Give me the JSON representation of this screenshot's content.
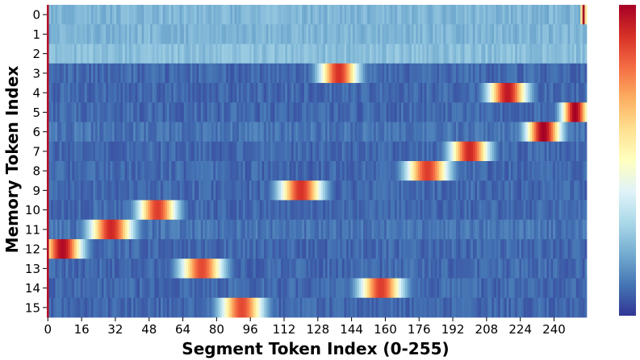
{
  "chart_data": {
    "type": "heatmap",
    "title": "",
    "xlabel": "Segment Token Index (0-255)",
    "ylabel": "Memory Token Index",
    "x_range": [
      0,
      255
    ],
    "x_ticks": [
      0,
      16,
      32,
      48,
      64,
      80,
      96,
      112,
      128,
      144,
      160,
      176,
      192,
      208,
      224,
      240
    ],
    "y_ticks": [
      0,
      1,
      2,
      3,
      4,
      5,
      6,
      7,
      8,
      9,
      10,
      11,
      12,
      13,
      14,
      15
    ],
    "colormap": [
      "#313695",
      "#4575b4",
      "#74add1",
      "#abd9e9",
      "#e0f3f8",
      "#ffffbf",
      "#fee090",
      "#fdae61",
      "#f46d43",
      "#d73027",
      "#a50026"
    ],
    "value_range": [
      0,
      1
    ],
    "colorbar": true,
    "rows": [
      {
        "memory_token": 0,
        "background": 0.22,
        "peak_center": 254,
        "peak_width": 1.5,
        "peak_value": 1.0
      },
      {
        "memory_token": 1,
        "background": 0.22,
        "peak_center": null,
        "peak_width": 0,
        "peak_value": 0
      },
      {
        "memory_token": 2,
        "background": 0.24,
        "peak_center": null,
        "peak_width": 0,
        "peak_value": 0
      },
      {
        "memory_token": 3,
        "background": 0.08,
        "peak_center": 138,
        "peak_width": 10,
        "peak_value": 0.9
      },
      {
        "memory_token": 4,
        "background": 0.08,
        "peak_center": 218,
        "peak_width": 10,
        "peak_value": 0.95
      },
      {
        "memory_token": 5,
        "background": 0.08,
        "peak_center": 250,
        "peak_width": 7,
        "peak_value": 1.0
      },
      {
        "memory_token": 6,
        "background": 0.1,
        "peak_center": 235,
        "peak_width": 9,
        "peak_value": 1.0
      },
      {
        "memory_token": 7,
        "background": 0.08,
        "peak_center": 200,
        "peak_width": 10,
        "peak_value": 0.92
      },
      {
        "memory_token": 8,
        "background": 0.08,
        "peak_center": 180,
        "peak_width": 11,
        "peak_value": 0.88
      },
      {
        "memory_token": 9,
        "background": 0.08,
        "peak_center": 120,
        "peak_width": 11,
        "peak_value": 0.9
      },
      {
        "memory_token": 10,
        "background": 0.08,
        "peak_center": 52,
        "peak_width": 10,
        "peak_value": 0.88
      },
      {
        "memory_token": 11,
        "background": 0.1,
        "peak_center": 30,
        "peak_width": 11,
        "peak_value": 0.92
      },
      {
        "memory_token": 12,
        "background": 0.08,
        "peak_center": 7,
        "peak_width": 10,
        "peak_value": 0.98
      },
      {
        "memory_token": 13,
        "background": 0.08,
        "peak_center": 73,
        "peak_width": 11,
        "peak_value": 0.86
      },
      {
        "memory_token": 14,
        "background": 0.08,
        "peak_center": 158,
        "peak_width": 11,
        "peak_value": 0.88
      },
      {
        "memory_token": 15,
        "background": 0.08,
        "peak_center": 92,
        "peak_width": 11,
        "peak_value": 0.86
      }
    ]
  }
}
